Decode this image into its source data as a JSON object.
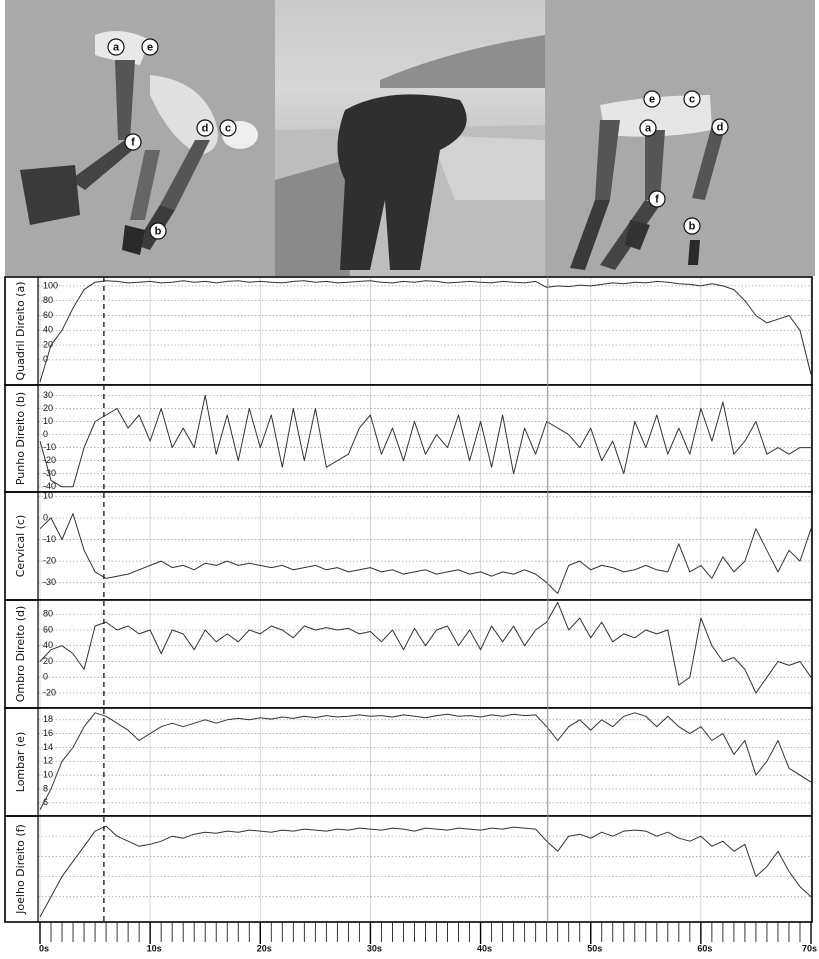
{
  "figure_labels": {
    "left": [
      "a",
      "e",
      "f",
      "d",
      "c",
      "b"
    ],
    "right": [
      "e",
      "c",
      "a",
      "d",
      "f",
      "b"
    ]
  },
  "x_axis": {
    "xlim": [
      0,
      70
    ],
    "xticks": [
      {
        "value": 0,
        "label": "0s"
      },
      {
        "value": 10,
        "label": "10s"
      },
      {
        "value": 20,
        "label": "20s"
      },
      {
        "value": 30,
        "label": "30s"
      },
      {
        "value": 40,
        "label": "40s"
      },
      {
        "value": 50,
        "label": "50s"
      },
      {
        "value": 60,
        "label": "60s"
      },
      {
        "value": 70,
        "label": "70s"
      }
    ],
    "minor_step": 1,
    "markers": [
      {
        "x": 5.8,
        "style": "dashed"
      },
      {
        "x": 46.1,
        "style": "solid"
      }
    ],
    "x": [
      0,
      1,
      2,
      3,
      4,
      5,
      6,
      7,
      8,
      9,
      10,
      11,
      12,
      13,
      14,
      15,
      16,
      17,
      18,
      19,
      20,
      21,
      22,
      23,
      24,
      25,
      26,
      27,
      28,
      29,
      30,
      31,
      32,
      33,
      34,
      35,
      36,
      37,
      38,
      39,
      40,
      41,
      42,
      43,
      44,
      45,
      46,
      47,
      48,
      49,
      50,
      51,
      52,
      53,
      54,
      55,
      56,
      57,
      58,
      59,
      60,
      61,
      62,
      63,
      64,
      65,
      66,
      67,
      68,
      69,
      70
    ]
  },
  "chart_data": [
    {
      "type": "line",
      "ylabel": "Quadril Direito (a)",
      "color": "#333333",
      "ylim": [
        -34,
        112
      ],
      "yticks": [
        0,
        20,
        40,
        60,
        80,
        100
      ],
      "grid": true,
      "values": [
        -30,
        20,
        40,
        70,
        95,
        105,
        107,
        106,
        104,
        105,
        106,
        104,
        105,
        107,
        105,
        106,
        104,
        106,
        107,
        105,
        106,
        105,
        104,
        106,
        107,
        105,
        106,
        104,
        105,
        106,
        107,
        105,
        104,
        106,
        105,
        107,
        106,
        104,
        105,
        106,
        105,
        104,
        106,
        105,
        104,
        106,
        98,
        100,
        99,
        101,
        100,
        102,
        104,
        103,
        105,
        104,
        106,
        105,
        103,
        102,
        100,
        103,
        100,
        95,
        80,
        60,
        50,
        55,
        60,
        40,
        -20
      ]
    },
    {
      "type": "line",
      "ylabel": "Punho Direito (b)",
      "color": "#333333",
      "ylim": [
        -44,
        38
      ],
      "yticks": [
        30,
        20,
        10,
        0,
        -10,
        -20,
        -30,
        -40
      ],
      "grid": true,
      "values": [
        -5,
        -35,
        -40,
        -40,
        -10,
        10,
        15,
        20,
        5,
        15,
        -5,
        20,
        -10,
        5,
        -10,
        30,
        -15,
        15,
        -20,
        20,
        -10,
        15,
        -25,
        20,
        -20,
        20,
        -25,
        -20,
        -15,
        5,
        15,
        -15,
        5,
        -20,
        10,
        -15,
        0,
        -10,
        15,
        -20,
        10,
        -25,
        15,
        -30,
        5,
        -15,
        10,
        5,
        0,
        -10,
        5,
        -20,
        -5,
        -30,
        10,
        -10,
        15,
        -15,
        5,
        -15,
        20,
        -5,
        25,
        -15,
        -5,
        10,
        -15,
        -10,
        -15,
        -10,
        -10
      ]
    },
    {
      "type": "line",
      "ylabel": "Cervical (c)",
      "color": "#333333",
      "ylim": [
        -38,
        12
      ],
      "yticks": [
        10,
        0,
        -10,
        -20,
        -30
      ],
      "grid": true,
      "values": [
        -5,
        0,
        -10,
        2,
        -15,
        -25,
        -28,
        -27,
        -26,
        -24,
        -22,
        -20,
        -23,
        -22,
        -24,
        -21,
        -22,
        -20,
        -22,
        -21,
        -22,
        -23,
        -22,
        -24,
        -23,
        -22,
        -24,
        -23,
        -25,
        -24,
        -23,
        -25,
        -24,
        -26,
        -25,
        -24,
        -26,
        -25,
        -24,
        -26,
        -25,
        -27,
        -25,
        -26,
        -24,
        -26,
        -30,
        -35,
        -22,
        -20,
        -24,
        -22,
        -23,
        -25,
        -24,
        -22,
        -24,
        -25,
        -12,
        -25,
        -22,
        -28,
        -18,
        -25,
        -20,
        -5,
        -15,
        -25,
        -15,
        -20,
        -5
      ]
    },
    {
      "type": "line",
      "ylabel": "Ombro Direito (d)",
      "color": "#333333",
      "ylim": [
        -39,
        98
      ],
      "yticks": [
        80,
        60,
        40,
        20,
        0,
        -20
      ],
      "grid": true,
      "values": [
        20,
        35,
        40,
        30,
        10,
        65,
        70,
        60,
        65,
        55,
        60,
        30,
        60,
        55,
        35,
        60,
        45,
        55,
        45,
        60,
        55,
        65,
        60,
        50,
        65,
        60,
        63,
        60,
        62,
        55,
        58,
        45,
        60,
        35,
        62,
        40,
        60,
        65,
        40,
        60,
        35,
        65,
        45,
        65,
        40,
        60,
        70,
        95,
        60,
        75,
        50,
        70,
        45,
        55,
        50,
        60,
        55,
        60,
        -10,
        0,
        75,
        40,
        20,
        25,
        10,
        -20,
        0,
        20,
        15,
        20,
        0
      ]
    },
    {
      "type": "line",
      "ylabel": "Lombar (e)",
      "color": "#333333",
      "ylim": [
        4.1,
        19.7
      ],
      "yticks": [
        18,
        16,
        14,
        12,
        10,
        8,
        6
      ],
      "grid": true,
      "values": [
        5,
        8,
        12,
        14,
        17,
        19,
        18.5,
        17.5,
        16.5,
        15,
        16,
        17,
        17.5,
        17,
        17.5,
        18,
        17.5,
        18,
        18.2,
        18,
        18.3,
        18.1,
        18.4,
        18.2,
        18.5,
        18.3,
        18.6,
        18.4,
        18.5,
        18.7,
        18.5,
        18.6,
        18.4,
        18.7,
        18.5,
        18.3,
        18.6,
        18.8,
        18.5,
        18.6,
        18.4,
        18.7,
        18.5,
        18.8,
        18.6,
        18.7,
        17,
        15,
        17,
        18,
        16.5,
        18,
        17,
        18.5,
        19,
        18.5,
        17,
        18.5,
        17,
        16,
        17,
        15,
        16,
        13,
        15,
        10,
        12,
        15,
        11,
        10,
        9
      ]
    },
    {
      "type": "line",
      "ylabel": "Joelho Direito (f)",
      "color": "#333333",
      "ylim": [
        -5,
        100
      ],
      "yticks": [],
      "ygrid": [
        20,
        40,
        60,
        80
      ],
      "grid": true,
      "values": [
        0,
        20,
        40,
        55,
        70,
        85,
        90,
        80,
        75,
        70,
        72,
        75,
        80,
        78,
        82,
        84,
        83,
        85,
        84,
        86,
        85,
        84,
        86,
        85,
        87,
        86,
        85,
        87,
        86,
        88,
        87,
        86,
        88,
        87,
        85,
        88,
        87,
        86,
        88,
        87,
        86,
        88,
        87,
        89,
        88,
        87,
        75,
        65,
        80,
        82,
        78,
        84,
        80,
        85,
        86,
        85,
        80,
        84,
        78,
        75,
        80,
        70,
        75,
        65,
        72,
        40,
        50,
        65,
        45,
        30,
        20
      ]
    }
  ]
}
